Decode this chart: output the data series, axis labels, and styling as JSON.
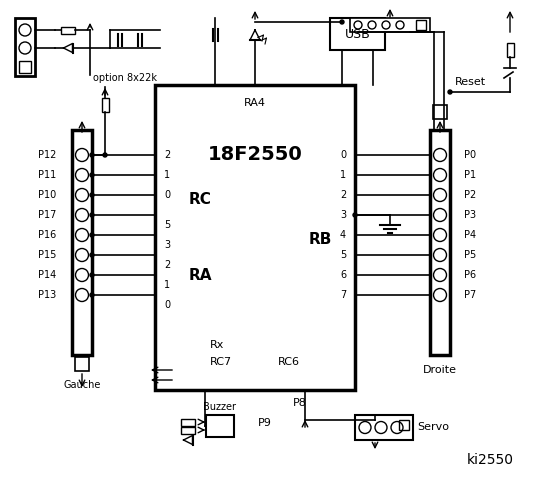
{
  "title": "ki2550",
  "bg_color": "#ffffff",
  "chip_label": "18F2550",
  "chip_sublabel": "RA4",
  "rc_label": "RC",
  "ra_label": "RA",
  "rb_label": "RB",
  "left_labels": [
    "P12",
    "P11",
    "P10",
    "P17",
    "P16",
    "P15",
    "P14",
    "P13"
  ],
  "right_labels": [
    "P0",
    "P1",
    "P2",
    "P3",
    "P4",
    "P5",
    "P6",
    "P7"
  ],
  "rc_pins": [
    "2",
    "1",
    "0"
  ],
  "ra_pins": [
    "5",
    "3",
    "2",
    "1",
    "0"
  ],
  "rb_pins": [
    "0",
    "1",
    "2",
    "3",
    "4",
    "5",
    "6",
    "7"
  ],
  "rx_label": "Rx",
  "rc7_label": "RC7",
  "rc6_label": "RC6",
  "gauche_label": "Gauche",
  "droite_label": "Droite",
  "buzzer_label": "Buzzer",
  "p9_label": "P9",
  "p8_label": "P8",
  "servo_label": "Servo",
  "usb_label": "USB",
  "reset_label": "Reset",
  "option_label": "option 8x22k"
}
